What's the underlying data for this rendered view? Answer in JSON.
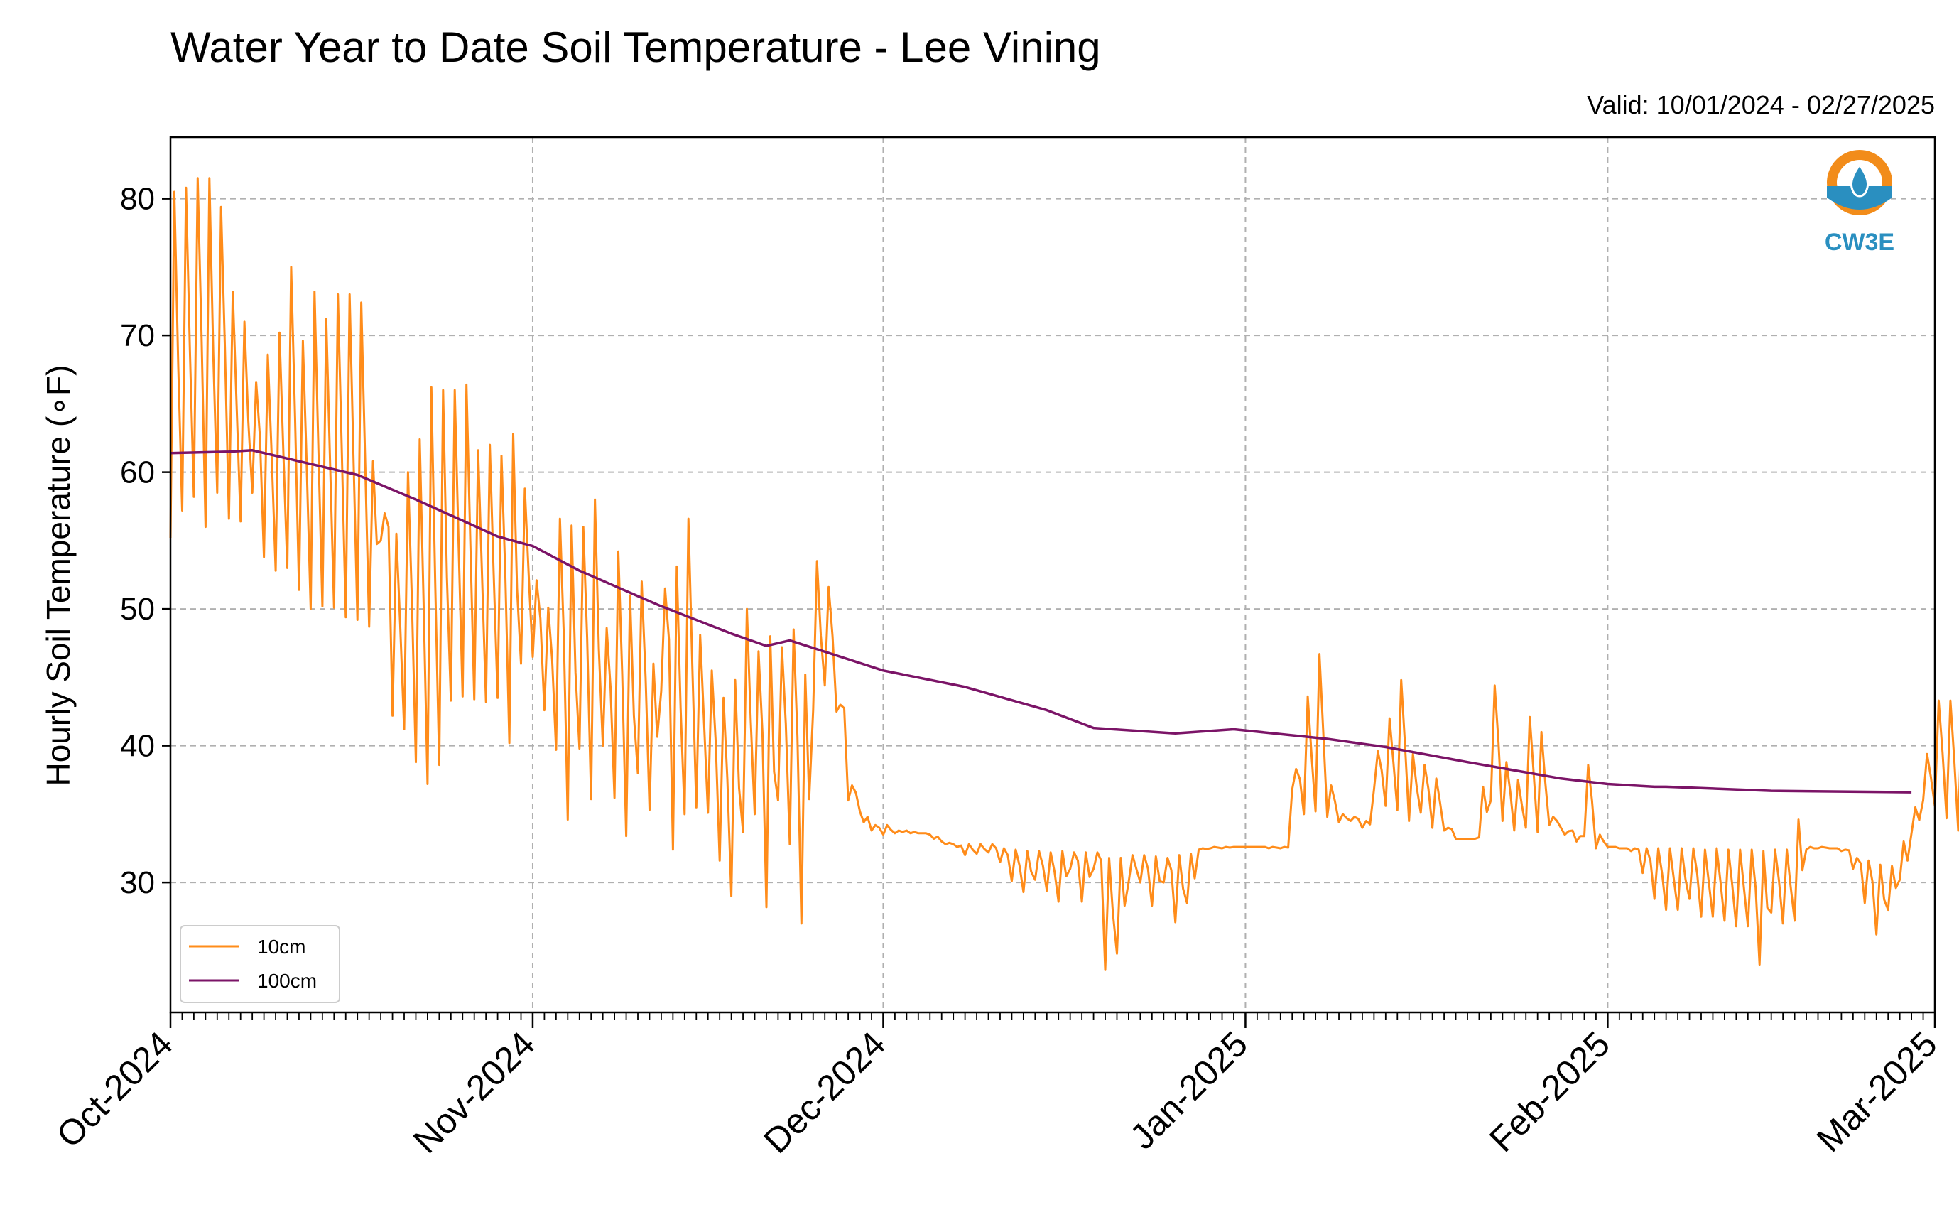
{
  "chart_data": {
    "type": "line",
    "title": "Water Year to Date Soil Temperature - Lee Vining",
    "subtitle": "Valid: 10/01/2024 - 02/27/2025",
    "xlabel": "",
    "ylabel": "Hourly Soil Temperature (∘F)",
    "xlim": [
      "2024-10-01",
      "2025-03-01"
    ],
    "ylim": [
      20.5,
      84.5
    ],
    "x_ticks": [
      "Oct-2024",
      "Nov-2024",
      "Dec-2024",
      "Jan-2025",
      "Feb-2025",
      "Mar-2025"
    ],
    "y_ticks": [
      30,
      40,
      50,
      60,
      70,
      80
    ],
    "grid": true,
    "legend_position": "lower-left",
    "series": [
      {
        "name": "10cm",
        "color": "#ff8c1a",
        "daily_min": [
          55.2,
          57.2,
          58.2,
          56.0,
          58.5,
          56.6,
          56.4,
          58.5,
          53.8,
          52.8,
          53.0,
          51.4,
          50.0,
          50.2,
          50.1,
          49.4,
          49.2,
          48.7,
          55.0,
          42.2,
          41.2,
          38.8,
          37.2,
          38.6,
          43.3,
          43.6,
          43.4,
          43.2,
          43.5,
          40.2,
          46.0,
          46.5,
          42.6,
          39.7,
          34.6,
          39.8,
          36.1,
          40.0,
          36.2,
          33.4,
          38.0,
          35.3,
          44.0,
          32.4,
          35.0,
          35.5,
          35.1,
          31.6,
          29.0,
          33.7,
          35.0,
          28.2,
          36.0,
          32.8,
          27.0,
          42.6,
          44.4,
          42.5,
          36.0,
          35.2,
          33.8,
          33.5,
          33.6,
          33.8,
          33.6,
          33.5,
          33.0,
          32.8,
          32.0,
          32.1,
          32.2,
          31.5,
          30.1,
          29.3,
          30.2,
          29.4,
          28.6,
          31.0,
          28.6,
          31.0,
          23.6,
          24.8,
          30.0,
          30.0,
          28.3,
          30.0,
          27.1,
          28.5,
          32.4,
          32.5,
          32.5,
          32.6,
          32.6,
          32.6,
          32.5,
          32.5,
          36.8,
          35.0,
          35.2,
          34.8,
          34.4,
          34.5,
          34.0,
          36.8,
          35.6,
          35.3,
          34.5,
          35.1,
          34.0,
          33.8,
          33.2,
          33.2,
          33.3,
          36.0,
          34.5,
          33.8,
          34.0,
          33.7,
          34.2,
          34.0,
          33.8,
          33.4,
          32.5,
          32.6,
          32.5,
          32.3,
          30.7,
          28.8,
          28.0,
          28.0,
          28.8,
          27.5,
          27.5,
          27.2,
          26.8,
          26.8,
          24.0,
          27.8,
          27.0,
          27.2,
          32.4,
          32.5,
          32.5,
          32.3,
          31.0,
          28.5,
          26.2,
          28.0,
          30.2,
          33.6,
          36.0,
          35.6,
          34.7,
          33.8,
          33.5,
          33.6,
          33.0,
          33.0,
          33.0,
          33.0,
          32.8,
          33.0,
          32.8,
          32.6,
          30.0,
          32.5,
          32.6,
          32.7,
          32.7,
          32.6,
          32.6,
          32.6,
          32.6,
          32.6,
          32.7,
          32.7,
          32.7,
          32.8,
          32.8,
          32.8,
          33.0,
          33.0
        ],
        "daily_max": [
          80.5,
          80.8,
          81.5,
          81.5,
          79.4,
          73.2,
          71.0,
          66.6,
          68.6,
          70.2,
          75.0,
          69.6,
          73.2,
          71.2,
          73.0,
          73.0,
          72.4,
          60.8,
          57.0,
          55.5,
          60.0,
          62.4,
          66.2,
          66.0,
          66.0,
          66.4,
          61.6,
          62.0,
          61.2,
          62.8,
          58.8,
          52.1,
          50.1,
          56.6,
          56.1,
          56.0,
          58.0,
          48.6,
          54.2,
          51.0,
          52.0,
          46.0,
          51.5,
          53.1,
          56.6,
          48.1,
          45.5,
          43.5,
          44.8,
          50.0,
          46.9,
          48.0,
          47.2,
          48.5,
          45.2,
          53.5,
          51.6,
          43.0,
          37.1,
          34.4,
          34.2,
          34.2,
          33.8,
          33.6,
          33.6,
          33.2,
          32.8,
          32.6,
          32.8,
          32.8,
          32.8,
          32.5,
          32.4,
          32.3,
          32.3,
          32.2,
          32.3,
          32.2,
          32.2,
          32.2,
          31.8,
          31.8,
          32.0,
          32.0,
          31.9,
          31.8,
          32.0,
          32.1,
          32.5,
          32.6,
          32.6,
          32.6,
          32.6,
          32.6,
          32.6,
          32.6,
          38.3,
          43.6,
          46.7,
          37.1,
          35.0,
          34.8,
          34.5,
          39.6,
          42.0,
          44.8,
          39.4,
          38.6,
          37.6,
          34.0,
          33.2,
          33.2,
          37.0,
          44.4,
          38.8,
          37.5,
          42.1,
          41.0,
          34.8,
          33.5,
          33.0,
          38.6,
          33.5,
          32.6,
          32.5,
          32.5,
          32.5,
          32.5,
          32.5,
          32.5,
          32.5,
          32.4,
          32.5,
          32.4,
          32.4,
          32.4,
          32.3,
          32.4,
          32.4,
          34.6,
          32.6,
          32.6,
          32.5,
          32.4,
          31.8,
          31.6,
          31.3,
          31.2,
          33.0,
          35.5,
          39.4,
          43.3,
          43.3,
          43.2,
          40.4,
          34.0,
          33.2,
          33.0,
          33.0,
          33.0,
          33.0,
          33.0,
          32.8,
          32.8,
          32.8,
          32.8,
          32.7,
          32.7,
          32.7,
          32.8,
          32.7,
          32.7,
          32.7,
          32.7,
          32.7,
          32.8,
          32.8,
          32.8,
          33.0,
          33.5
        ]
      },
      {
        "name": "100cm",
        "color": "#7b1467",
        "x": [
          "2024-10-01",
          "2024-10-06",
          "2024-10-08",
          "2024-10-12",
          "2024-10-17",
          "2024-10-22",
          "2024-10-29",
          "2024-11-01",
          "2024-11-05",
          "2024-11-12",
          "2024-11-18",
          "2024-11-21",
          "2024-11-23",
          "2024-12-01",
          "2024-12-08",
          "2024-12-15",
          "2024-12-19",
          "2024-12-26",
          "2024-12-31",
          "2025-01-08",
          "2025-01-13",
          "2025-01-20",
          "2025-01-28",
          "2025-02-01",
          "2025-02-05",
          "2025-02-06",
          "2025-02-15",
          "2025-02-27"
        ],
        "y": [
          61.4,
          61.5,
          61.6,
          60.8,
          59.8,
          58.0,
          55.3,
          54.6,
          52.8,
          50.2,
          48.2,
          47.3,
          47.7,
          45.5,
          44.3,
          42.6,
          41.3,
          40.9,
          41.2,
          40.5,
          39.9,
          38.8,
          37.6,
          37.2,
          37.0,
          37.0,
          36.7,
          36.6
        ]
      }
    ]
  },
  "logo": {
    "text": "CW3E"
  }
}
